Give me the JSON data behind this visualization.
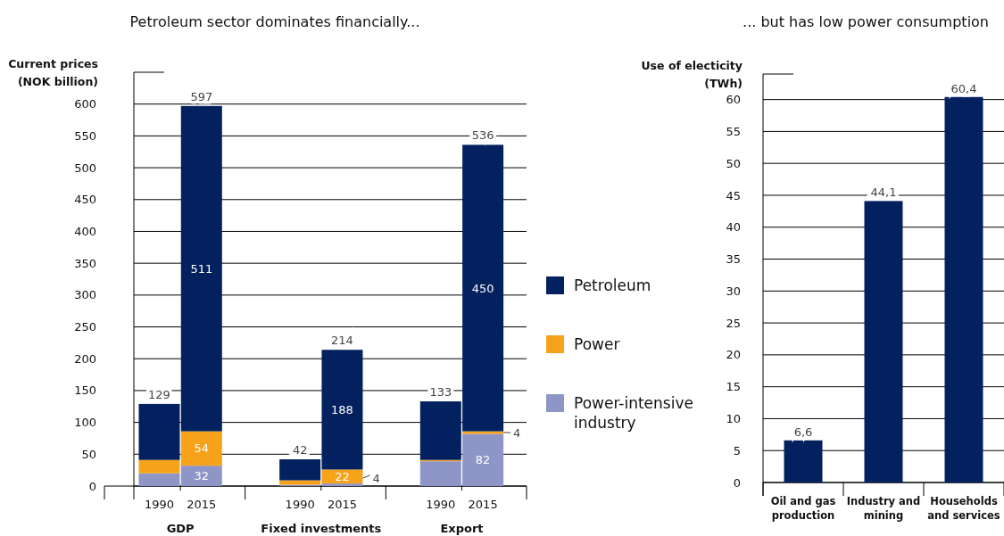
{
  "chart_data": [
    {
      "type": "bar",
      "title": "Petroleum sector dominates financially...",
      "ylabel": "Current prices (NOK billion)",
      "categories": [
        "1990",
        "2015",
        "1990",
        "2015",
        "1990",
        "2015"
      ],
      "stacked": true,
      "ylim": [
        0,
        650
      ],
      "yticks": [
        0,
        50,
        100,
        150,
        200,
        250,
        300,
        350,
        400,
        450,
        500,
        550,
        600
      ],
      "grid": "y",
      "legend": "right",
      "annotations": [
        "GDP",
        "Fixed investments",
        "Export"
      ],
      "series": [
        {
          "name": "Power-intensive industry",
          "color": "#8e96c8",
          "values": [
            20,
            32,
            2,
            4,
            39,
            82
          ],
          "value_labels": [
            null,
            "32",
            null,
            "4",
            null,
            "82"
          ]
        },
        {
          "name": "Power",
          "color": "#f7a21b",
          "values": [
            21,
            54,
            7,
            22,
            2,
            4
          ],
          "value_labels": [
            null,
            "54",
            null,
            "22",
            null,
            "4"
          ]
        },
        {
          "name": "Petroleum",
          "color": "#03215e",
          "values": [
            88,
            511,
            33,
            188,
            92,
            450
          ],
          "value_labels": [
            null,
            "511",
            null,
            "188",
            null,
            "450"
          ]
        }
      ],
      "totals": [
        "129",
        "597",
        "42",
        "214",
        "133",
        "536"
      ]
    },
    {
      "type": "bar",
      "title": "... but has low power consumption",
      "ylabel": "Use of electicity (TWh)",
      "categories": [
        "Oil and gas production",
        "Industry and mining",
        "Households and services"
      ],
      "values": [
        6.6,
        44.1,
        60.4
      ],
      "value_labels": [
        "6,6",
        "44,1",
        "60,4"
      ],
      "color": "#03215e",
      "ylim": [
        0,
        64
      ],
      "yticks": [
        0,
        5,
        10,
        15,
        20,
        25,
        30,
        35,
        40,
        45,
        50,
        55,
        60
      ],
      "grid": "y",
      "legend": false
    }
  ]
}
